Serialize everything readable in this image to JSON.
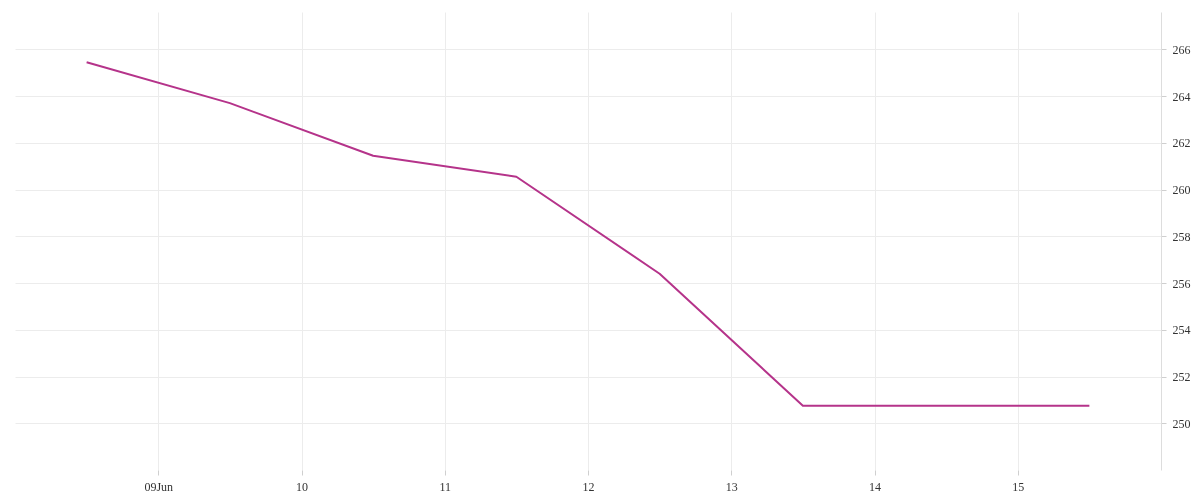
{
  "chart_data": {
    "type": "line",
    "x": [
      "--06-08T12:00",
      "--06-09T12:00",
      "--06-10T12:00",
      "--06-11T12:00",
      "--06-12T12:00",
      "--06-13T12:00",
      "--06-14T12:00",
      "--06-15T12:00"
    ],
    "series": [
      {
        "color": "#b5338a",
        "values": [
          265.45,
          263.7,
          261.45,
          260.55,
          256.4,
          250.75,
          250.75,
          250.75
        ]
      }
    ],
    "xlim": [
      "--06-08",
      "--06-16"
    ],
    "xticks": [
      {
        "value": "--06-09",
        "label": "09Jun"
      },
      {
        "value": "--06-10",
        "label": "10"
      },
      {
        "value": "--06-11",
        "label": "11"
      },
      {
        "value": "--06-12",
        "label": "12"
      },
      {
        "value": "--06-13",
        "label": "13"
      },
      {
        "value": "--06-14",
        "label": "14"
      },
      {
        "value": "--06-15",
        "label": "15"
      }
    ],
    "ylim": [
      248,
      267.6
    ],
    "yticks": [
      250,
      252,
      254,
      256,
      258,
      260,
      262,
      264,
      266
    ],
    "grid": true,
    "legend": false,
    "marker": "none",
    "line_style": "solid"
  }
}
